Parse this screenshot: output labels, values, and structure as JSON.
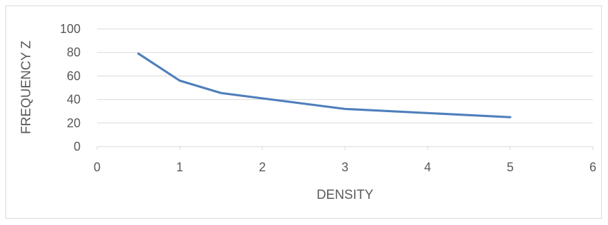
{
  "chart_data": {
    "type": "line",
    "title": "",
    "xlabel": "DENSITY",
    "ylabel": "FREQUENCY Z",
    "xlim": [
      0,
      6
    ],
    "ylim": [
      0,
      100
    ],
    "x_ticks": [
      "0",
      "1",
      "2",
      "3",
      "4",
      "5",
      "6"
    ],
    "y_ticks": [
      "0",
      "20",
      "40",
      "60",
      "80",
      "100"
    ],
    "grid": true,
    "legend": "none",
    "series": [
      {
        "color": "#4f7fbc",
        "points": [
          {
            "x": 0.5,
            "y": 79
          },
          {
            "x": 1.0,
            "y": 56
          },
          {
            "x": 1.5,
            "y": 45.5
          },
          {
            "x": 2.0,
            "y": 41
          },
          {
            "x": 3.0,
            "y": 32
          },
          {
            "x": 4.0,
            "y": 28.5
          },
          {
            "x": 5.0,
            "y": 25
          }
        ]
      }
    ],
    "colors": {
      "grid": "#d9d9d9",
      "text": "#595959"
    }
  }
}
